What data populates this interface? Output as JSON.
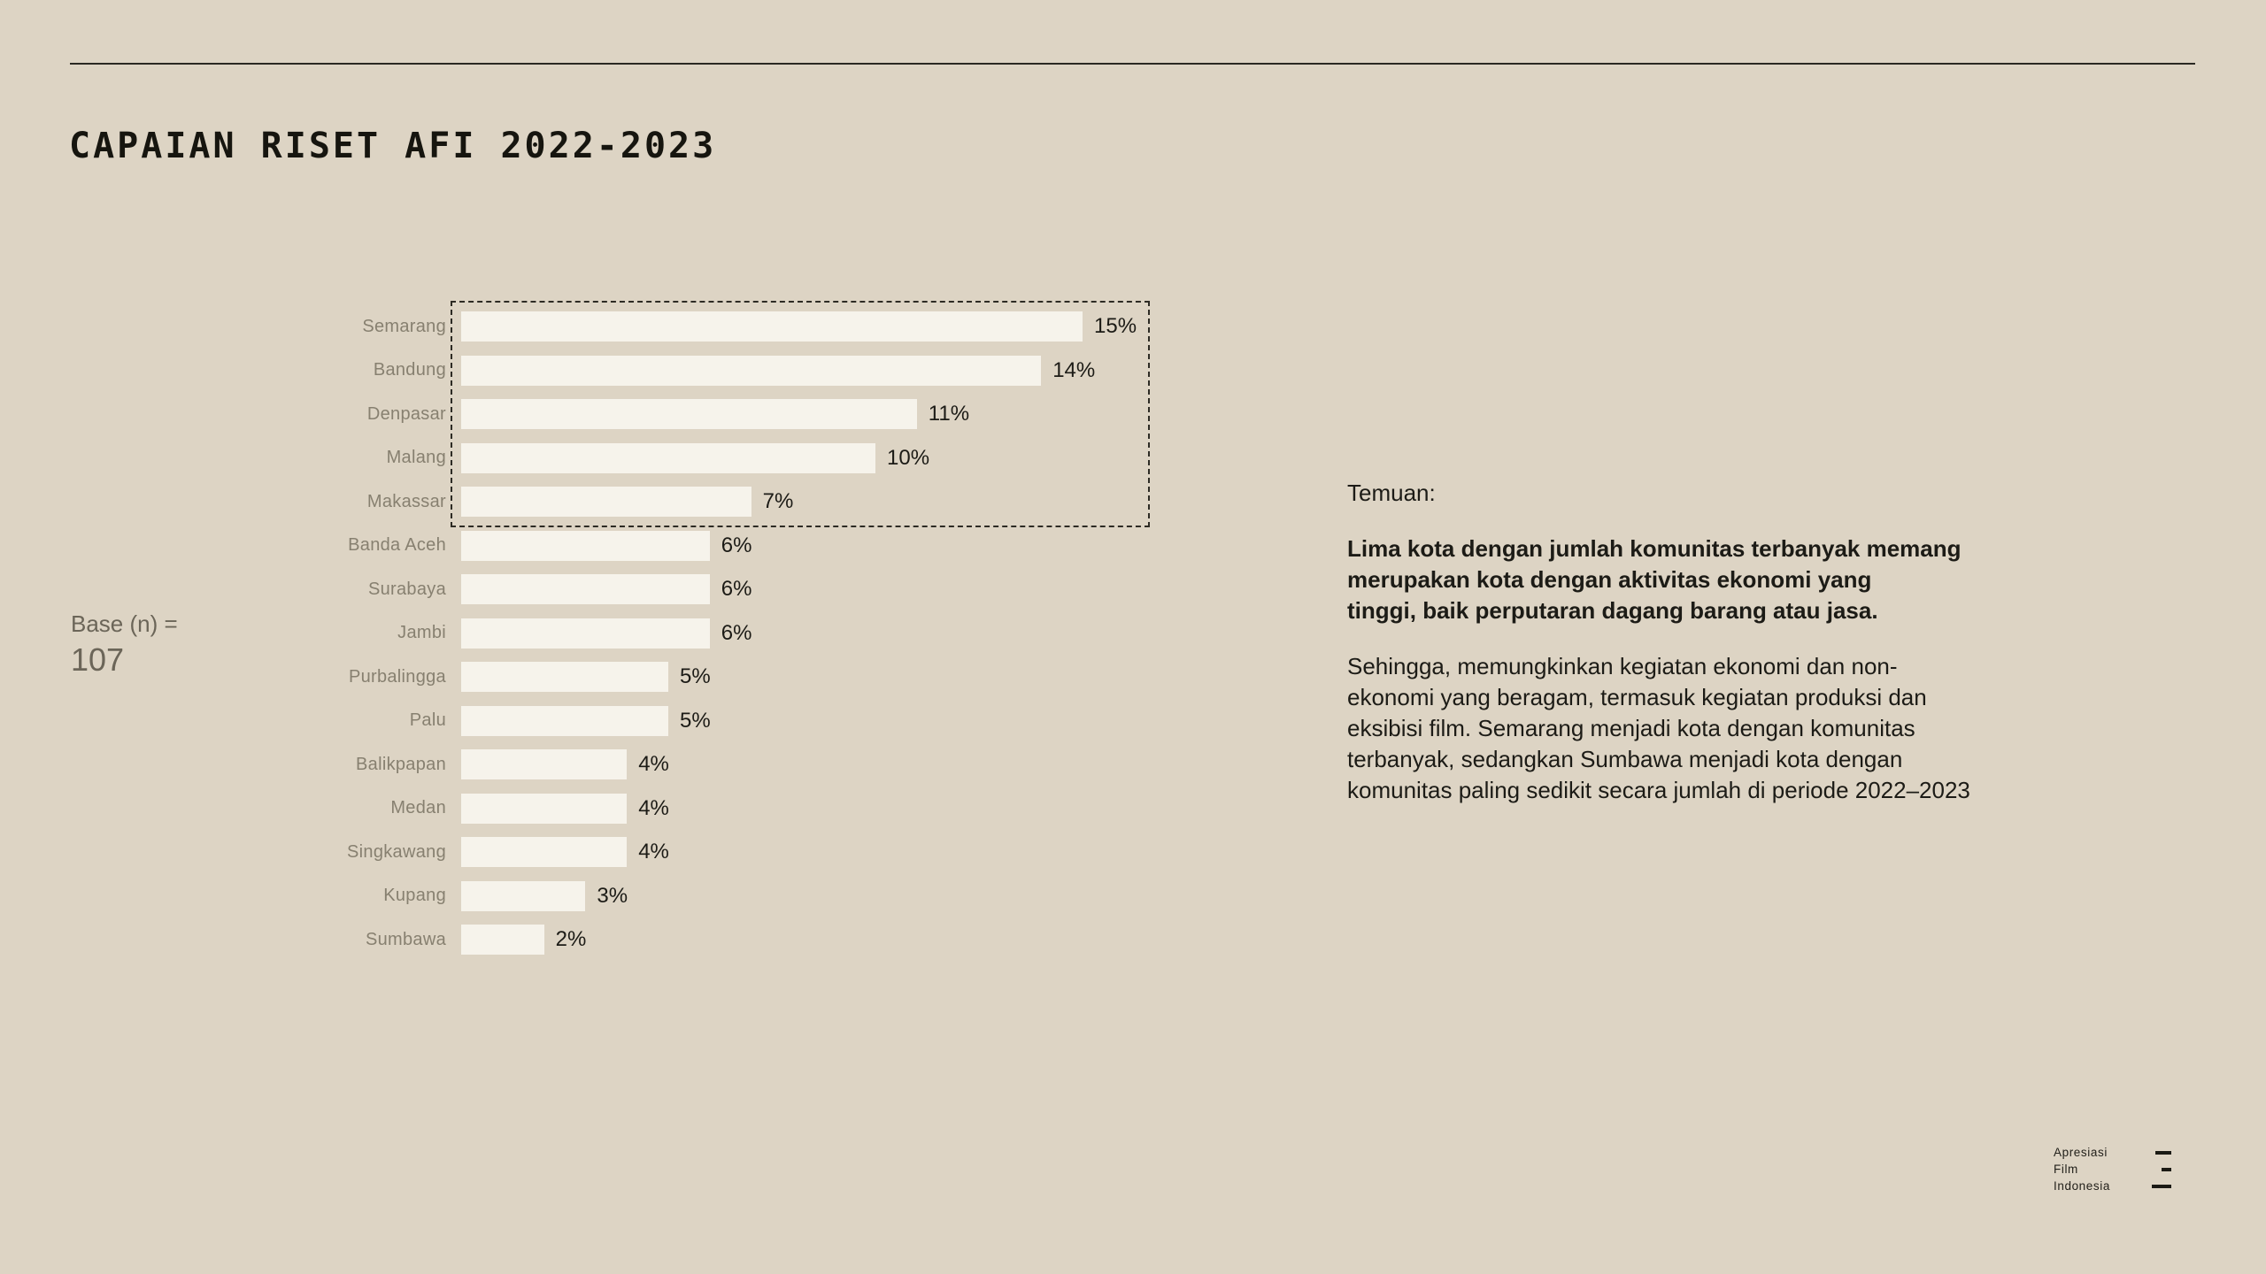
{
  "page": {
    "title": "CAPAIAN RISET AFI 2022-2023",
    "background_color": "#ddd4c4",
    "rule_color": "#2a2822"
  },
  "chart_data": {
    "type": "bar",
    "orientation": "horizontal",
    "title": "",
    "xlabel": "",
    "ylabel": "",
    "xlim": [
      0,
      15
    ],
    "grid": false,
    "unit": "%",
    "categories": [
      "Semarang",
      "Bandung",
      "Denpasar",
      "Malang",
      "Makassar",
      "Banda Aceh",
      "Surabaya",
      "Jambi",
      "Purbalingga",
      "Palu",
      "Balikpapan",
      "Medan",
      "Singkawang",
      "Kupang",
      "Sumbawa"
    ],
    "values": [
      15,
      14,
      11,
      10,
      7,
      6,
      6,
      6,
      5,
      5,
      4,
      4,
      4,
      3,
      2
    ],
    "highlighted_top_n": 5,
    "bar_color": "#f6f3eb",
    "label_color": "#878070",
    "value_color": "#1c1b16",
    "highlight_border_color": "#2d2b24"
  },
  "base": {
    "label": "Base (n) =",
    "value": "107"
  },
  "findings": {
    "heading": "Temuan:",
    "bold_paragraph": "Lima kota dengan jumlah komunitas terbanyak memang\nmerupakan kota dengan aktivitas ekonomi yang\ntinggi, baik perputaran dagang barang atau jasa.",
    "paragraph": "Sehingga, memungkinkan kegiatan ekonomi dan non-\nekonomi yang beragam, termasuk kegiatan produksi dan\neksibisi film. Semarang menjadi kota dengan komunitas\nterbanyak, sedangkan Sumbawa menjadi kota dengan\nkomunitas paling sedikit secara jumlah di periode 2022–2023"
  },
  "logo": {
    "lines": [
      "Apresiasi",
      "Film",
      "Indonesia"
    ]
  }
}
